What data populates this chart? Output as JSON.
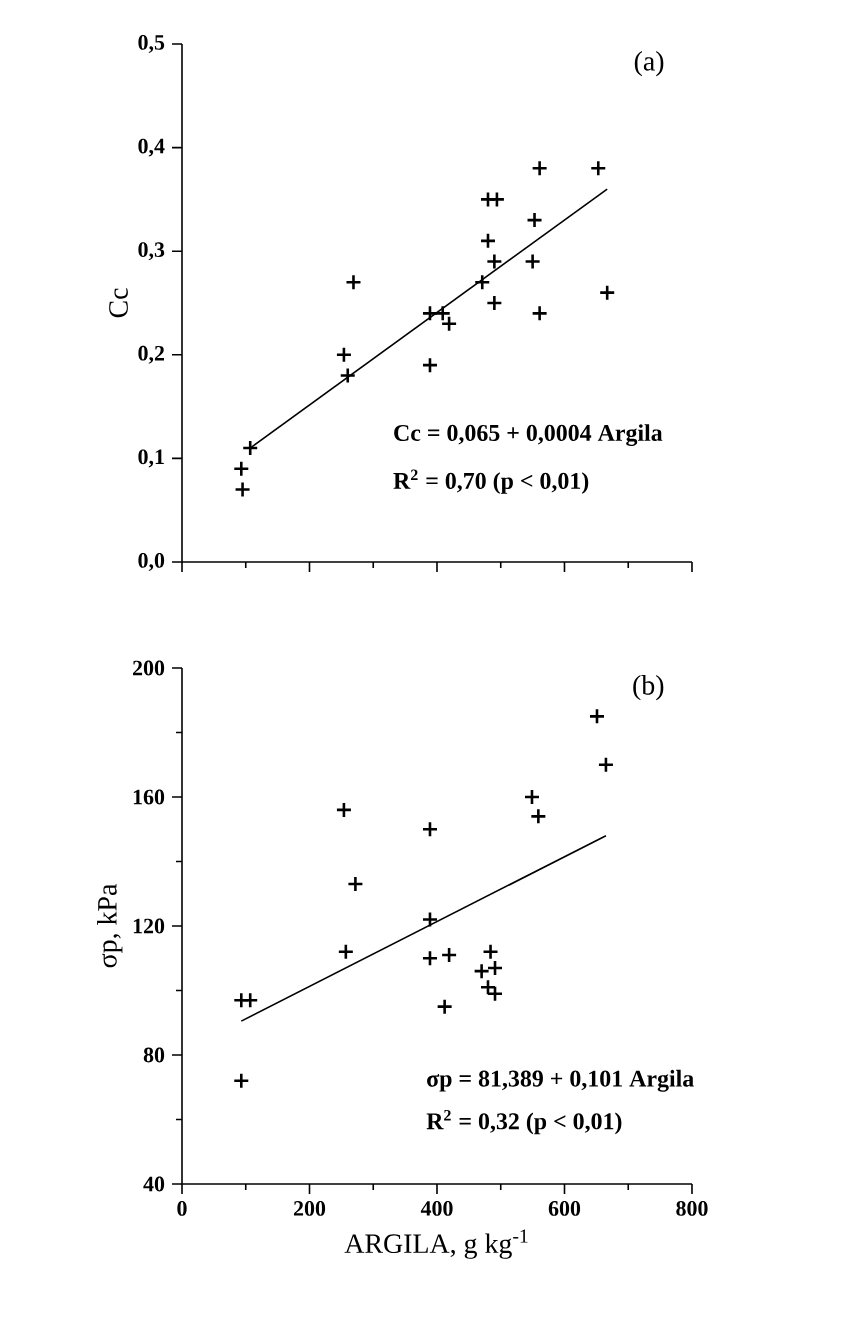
{
  "chart_data": [
    {
      "type": "scatter",
      "ylabel": "Cc",
      "marker": "cross",
      "tick_labels": "y",
      "annotations": [
        "(a)",
        "Cc = 0,065 + 0,0004 Argila",
        "R$^{2}$ = 0,70 (p < 0,01)"
      ],
      "xlim": [
        0,
        800
      ],
      "ylim": [
        0,
        0.5
      ],
      "xticks": [
        0,
        {
          "value": 100,
          "label": null
        },
        200,
        {
          "value": 300,
          "label": null
        },
        400,
        {
          "value": 500,
          "label": null
        },
        600,
        {
          "value": 700,
          "label": null
        },
        800
      ],
      "yticks": [
        {
          "value": 0,
          "label": "0,0"
        },
        {
          "value": 0.1,
          "label": "0,1"
        },
        {
          "value": 0.2,
          "label": "0,2"
        },
        {
          "value": 0.3,
          "label": "0,3"
        },
        {
          "value": 0.4,
          "label": "0,4"
        },
        {
          "value": 0.5,
          "label": "0,5"
        }
      ],
      "series": [
        {
          "type": "scatter",
          "color": "#000000",
          "x": [
            95,
            93,
            107,
            254,
            260,
            269,
            389,
            389,
            409,
            419,
            471,
            480,
            480,
            494,
            490,
            490,
            553,
            550,
            561,
            561,
            653,
            667
          ],
          "values": [
            0.07,
            0.09,
            0.11,
            0.2,
            0.18,
            0.27,
            0.19,
            0.24,
            0.24,
            0.23,
            0.27,
            0.31,
            0.35,
            0.35,
            0.29,
            0.25,
            0.33,
            0.29,
            0.24,
            0.38,
            0.38,
            0.26
          ]
        },
        {
          "type": "line",
          "color": "#000000",
          "marker": "none",
          "line_style": "solid",
          "x": [
            107,
            667
          ],
          "values": [
            0.11,
            0.36
          ]
        }
      ]
    },
    {
      "type": "scatter",
      "xlabel": "ARGILA, g kg$^{-1}$",
      "ylabel": "σp, kPa",
      "marker": "cross",
      "annotations": [
        "(b)",
        "σp = 81,389 + 0,101 Argila",
        "R$^{2}$ = 0,32 (p < 0,01)"
      ],
      "xlim": [
        0,
        800
      ],
      "ylim": [
        40,
        200
      ],
      "xticks": [
        0,
        {
          "value": 100,
          "label": null
        },
        200,
        {
          "value": 300,
          "label": null
        },
        400,
        {
          "value": 500,
          "label": null
        },
        600,
        {
          "value": 700,
          "label": null
        },
        800
      ],
      "yticks": [
        40,
        {
          "value": 60,
          "label": null
        },
        80,
        {
          "value": 100,
          "label": null
        },
        120,
        {
          "value": 140,
          "label": null
        },
        160,
        {
          "value": 180,
          "label": null
        },
        200
      ],
      "series": [
        {
          "type": "scatter",
          "color": "#000000",
          "x": [
            93,
            93,
            107,
            257,
            254,
            272,
            389,
            389,
            389,
            419,
            412,
            470,
            484,
            491,
            480,
            491,
            549,
            559,
            651,
            665
          ],
          "values": [
            72,
            97,
            97,
            112,
            156,
            133,
            150,
            122,
            110,
            111,
            95,
            106,
            112,
            107,
            101,
            99,
            160,
            154,
            185,
            170
          ]
        },
        {
          "type": "line",
          "color": "#000000",
          "marker": "none",
          "line_style": "solid",
          "x": [
            93,
            665
          ],
          "values": [
            90.5,
            148
          ]
        }
      ]
    }
  ]
}
